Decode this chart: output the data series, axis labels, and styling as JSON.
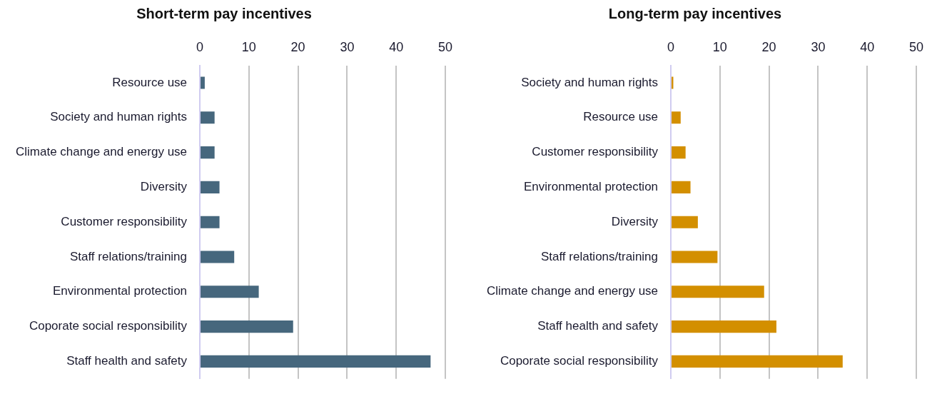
{
  "chart_data": [
    {
      "type": "bar",
      "orientation": "horizontal",
      "title": "Short-term pay incentives",
      "categories": [
        "Resource use",
        "Society and human rights",
        "Climate change and energy use",
        "Diversity",
        "Customer responsibility",
        "Staff relations/training",
        "Environmental protection",
        "Coporate social responsibility",
        "Staff health and safety"
      ],
      "values": [
        1,
        3,
        3,
        4,
        4,
        7,
        12,
        19,
        47
      ],
      "color": "#46677d",
      "xlim": [
        0,
        50
      ],
      "xticks": [
        0,
        10,
        20,
        30,
        40,
        50
      ],
      "grid": "x"
    },
    {
      "type": "bar",
      "orientation": "horizontal",
      "title": "Long-term pay incentives",
      "categories": [
        "Society and human rights",
        "Resource use",
        "Customer responsibility",
        "Environmental protection",
        "Diversity",
        "Staff relations/training",
        "Climate change and energy use",
        "Staff health and safety",
        "Coporate social responsibility"
      ],
      "values": [
        0.5,
        2,
        3,
        4,
        5.5,
        9.5,
        19,
        21.5,
        35
      ],
      "color": "#d38f00",
      "xlim": [
        0,
        50
      ],
      "xticks": [
        0,
        10,
        20,
        30,
        40,
        50
      ],
      "grid": "x"
    }
  ]
}
